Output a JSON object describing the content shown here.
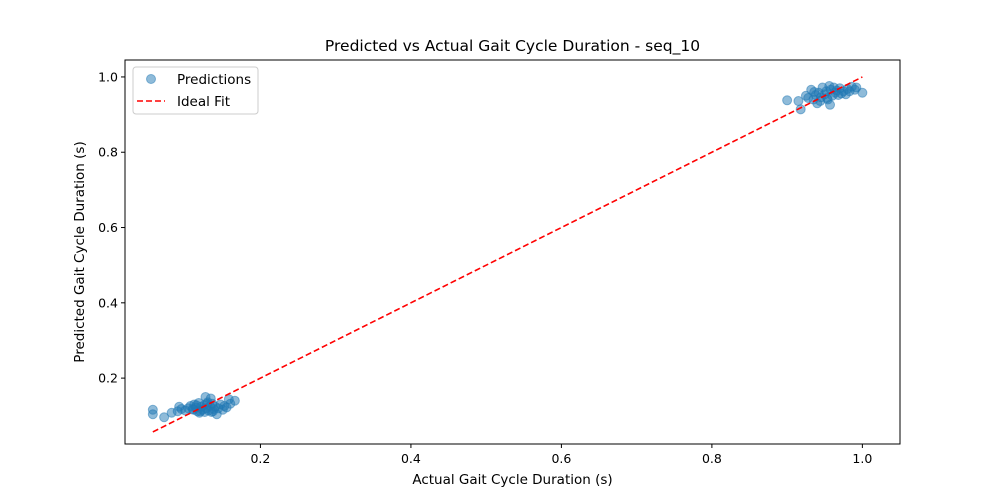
{
  "chart_data": {
    "type": "scatter",
    "title": "Predicted vs Actual Gait Cycle Duration - seq_10",
    "xlabel": "Actual Gait Cycle Duration (s)",
    "ylabel": "Predicted Gait Cycle Duration (s)",
    "xlim": [
      0.02,
      1.05
    ],
    "ylim": [
      0.025,
      1.045
    ],
    "xticks": [
      0.2,
      0.4,
      0.6,
      0.8,
      1.0
    ],
    "xtick_labels": [
      "0.2",
      "0.4",
      "0.6",
      "0.8",
      "1.0"
    ],
    "yticks": [
      0.2,
      0.4,
      0.6,
      0.8,
      1.0
    ],
    "ytick_labels": [
      "0.2",
      "0.4",
      "0.6",
      "0.8",
      "1.0"
    ],
    "grid": false,
    "legend_position": "top-left",
    "series": [
      {
        "name": "Predictions",
        "kind": "scatter",
        "color": "#1f77b4",
        "opacity": 0.5,
        "points": [
          [
            0.057,
            0.116
          ],
          [
            0.057,
            0.104
          ],
          [
            0.072,
            0.096
          ],
          [
            0.082,
            0.108
          ],
          [
            0.09,
            0.112
          ],
          [
            0.092,
            0.124
          ],
          [
            0.095,
            0.118
          ],
          [
            0.1,
            0.114
          ],
          [
            0.104,
            0.12
          ],
          [
            0.107,
            0.126
          ],
          [
            0.11,
            0.118
          ],
          [
            0.112,
            0.13
          ],
          [
            0.114,
            0.122
          ],
          [
            0.116,
            0.112
          ],
          [
            0.118,
            0.134
          ],
          [
            0.119,
            0.108
          ],
          [
            0.121,
            0.124
          ],
          [
            0.123,
            0.116
          ],
          [
            0.125,
            0.128
          ],
          [
            0.126,
            0.11
          ],
          [
            0.128,
            0.12
          ],
          [
            0.13,
            0.136
          ],
          [
            0.131,
            0.114
          ],
          [
            0.133,
            0.126
          ],
          [
            0.134,
            0.146
          ],
          [
            0.135,
            0.11
          ],
          [
            0.136,
            0.132
          ],
          [
            0.138,
            0.118
          ],
          [
            0.14,
            0.124
          ],
          [
            0.142,
            0.104
          ],
          [
            0.144,
            0.12
          ],
          [
            0.147,
            0.13
          ],
          [
            0.15,
            0.116
          ],
          [
            0.152,
            0.126
          ],
          [
            0.155,
            0.122
          ],
          [
            0.158,
            0.144
          ],
          [
            0.16,
            0.132
          ],
          [
            0.166,
            0.14
          ],
          [
            0.127,
            0.15
          ],
          [
            0.12,
            0.112
          ],
          [
            0.115,
            0.128
          ],
          [
            0.129,
            0.132
          ],
          [
            0.137,
            0.112
          ],
          [
            0.111,
            0.116
          ],
          [
            0.9,
            0.938
          ],
          [
            0.915,
            0.936
          ],
          [
            0.918,
            0.914
          ],
          [
            0.925,
            0.95
          ],
          [
            0.928,
            0.944
          ],
          [
            0.932,
            0.966
          ],
          [
            0.935,
            0.94
          ],
          [
            0.938,
            0.952
          ],
          [
            0.94,
            0.93
          ],
          [
            0.942,
            0.958
          ],
          [
            0.945,
            0.946
          ],
          [
            0.947,
            0.972
          ],
          [
            0.95,
            0.954
          ],
          [
            0.952,
            0.962
          ],
          [
            0.954,
            0.94
          ],
          [
            0.956,
            0.976
          ],
          [
            0.957,
            0.926
          ],
          [
            0.958,
            0.966
          ],
          [
            0.96,
            0.95
          ],
          [
            0.962,
            0.972
          ],
          [
            0.964,
            0.958
          ],
          [
            0.966,
            0.964
          ],
          [
            0.968,
            0.952
          ],
          [
            0.97,
            0.97
          ],
          [
            0.972,
            0.956
          ],
          [
            0.975,
            0.962
          ],
          [
            0.978,
            0.954
          ],
          [
            0.98,
            0.968
          ],
          [
            0.983,
            0.962
          ],
          [
            0.986,
            0.974
          ],
          [
            0.99,
            0.966
          ],
          [
            0.992,
            0.972
          ],
          [
            1.0,
            0.958
          ],
          [
            0.944,
            0.936
          ],
          [
            0.936,
            0.96
          ],
          [
            0.953,
            0.944
          ]
        ]
      },
      {
        "name": "Ideal Fit",
        "kind": "line",
        "style": "dashed",
        "color": "#ff0000",
        "points": [
          [
            0.057,
            0.057
          ],
          [
            1.0,
            1.0
          ]
        ]
      }
    ]
  }
}
